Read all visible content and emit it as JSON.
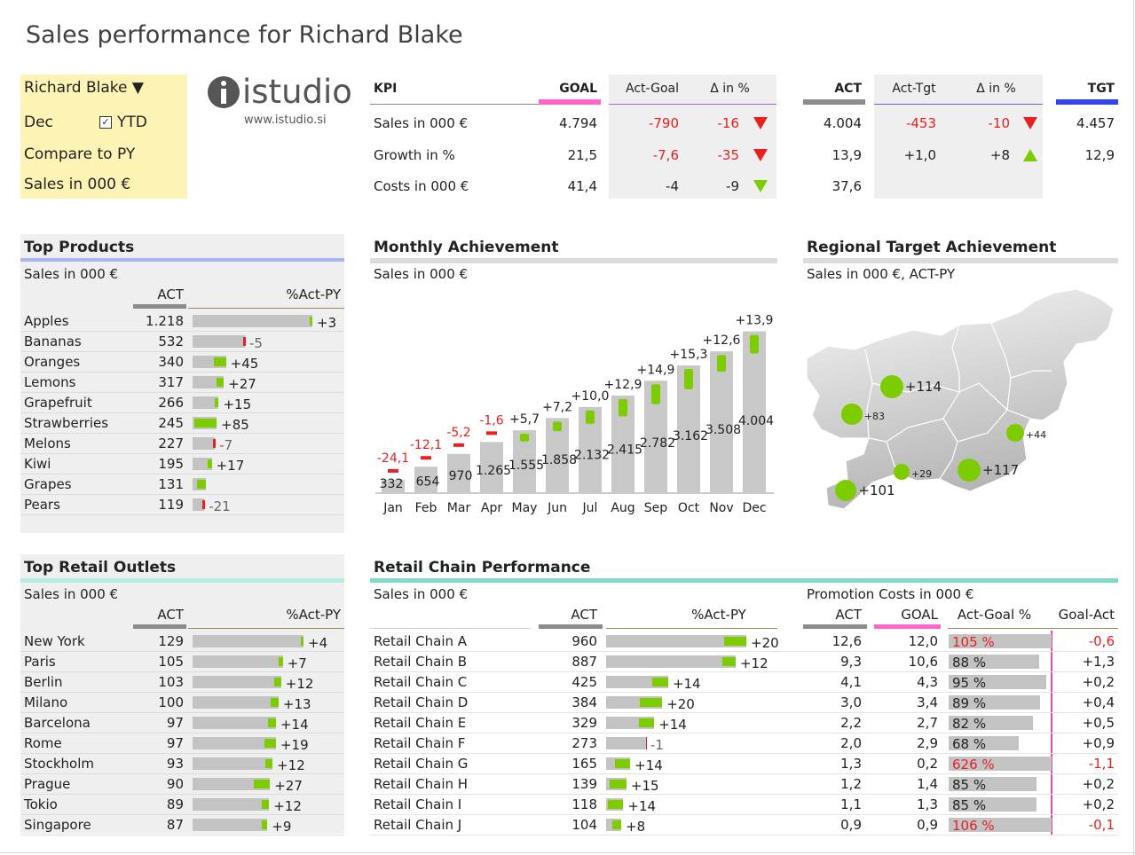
{
  "title": "Sales performance for Richard Blake",
  "selector": {
    "person": "Richard Blake",
    "person_caret": "▼",
    "period": "Dec",
    "ytd_label": "YTD",
    "ytd_checked": true,
    "compare": "Compare to PY",
    "measure": "Sales in 000 €"
  },
  "logo": {
    "name": "istudio",
    "url": "www.istudio.si"
  },
  "kpi": {
    "headers": {
      "kpi": "KPI",
      "goal": "GOAL",
      "act_goal": "Act-Goal",
      "delta1": "Δ in %",
      "act": "ACT",
      "act_tgt": "Act-Tgt",
      "delta2": "Δ in %",
      "tgt": "TGT"
    },
    "rows": [
      {
        "name": "Sales in 000 €",
        "goal": "4.794",
        "act_goal": "-790",
        "d1": "-16",
        "d1_dir": "down",
        "act": "4.004",
        "act_tgt": "-453",
        "d2": "-10",
        "d2_dir": "down",
        "tgt": "4.457"
      },
      {
        "name": "Growth in %",
        "goal": "21,5",
        "act_goal": "-7,6",
        "d1": "-35",
        "d1_dir": "down",
        "act": "13,9",
        "act_tgt": "+1,0",
        "d2": "+8",
        "d2_dir": "up",
        "tgt": "12,9"
      },
      {
        "name": "Costs in 000 €",
        "goal": "41,4",
        "act_goal": "-4",
        "d1": "-9",
        "d1_dir": "downgood",
        "act": "37,6",
        "act_tgt": "",
        "d2": "",
        "d2_dir": "",
        "tgt": ""
      }
    ]
  },
  "colors": {
    "goal": "#ff66cc",
    "act": "#8c8c8c",
    "tgt": "#3344ee",
    "pos": "#7ccc00",
    "neg": "#e82020",
    "bar": "#c3c3c3"
  },
  "top_products": {
    "title": "Top Products",
    "subtitle": "Sales in 000 €",
    "col_act": "ACT",
    "col_pct": "%Act-PY",
    "rows": [
      {
        "name": "Apples",
        "act": "1.218",
        "value": 1218,
        "pct": 3,
        "pct_label": "+3"
      },
      {
        "name": "Bananas",
        "act": "532",
        "value": 532,
        "pct": -5,
        "pct_label": "-5"
      },
      {
        "name": "Oranges",
        "act": "340",
        "value": 340,
        "pct": 45,
        "pct_label": "+45"
      },
      {
        "name": "Lemons",
        "act": "317",
        "value": 317,
        "pct": 27,
        "pct_label": "+27"
      },
      {
        "name": "Grapefruit",
        "act": "266",
        "value": 266,
        "pct": 15,
        "pct_label": "+15"
      },
      {
        "name": "Strawberries",
        "act": "245",
        "value": 245,
        "pct": 85,
        "pct_label": "+85"
      },
      {
        "name": "Melons",
        "act": "227",
        "value": 227,
        "pct": -7,
        "pct_label": "-7"
      },
      {
        "name": "Kiwi",
        "act": "195",
        "value": 195,
        "pct": 17,
        "pct_label": "+17"
      },
      {
        "name": "Grapes",
        "act": "131",
        "value": 131,
        "pct": 0,
        "pct_label": ""
      },
      {
        "name": "Pears",
        "act": "119",
        "value": 119,
        "pct": -21,
        "pct_label": "-21"
      }
    ]
  },
  "chart_data": {
    "type": "bar",
    "title": "Monthly Achievement",
    "subtitle": "Sales in 000 €",
    "categories": [
      "Jan",
      "Feb",
      "Mar",
      "Apr",
      "May",
      "Jun",
      "Jul",
      "Aug",
      "Sep",
      "Oct",
      "Nov",
      "Dec"
    ],
    "values": [
      332,
      654,
      970,
      1265,
      1555,
      1858,
      2132,
      2415,
      2782,
      3162,
      3508,
      4004
    ],
    "value_labels": [
      "332",
      "654",
      "970",
      "1.265",
      "1.555",
      "1.858",
      "2.132",
      "2.415",
      "2.782",
      "3.162",
      "3.508",
      "4.004"
    ],
    "growth": [
      -24.1,
      -12.1,
      -5.2,
      -1.6,
      5.7,
      7.2,
      10.0,
      12.9,
      14.9,
      15.3,
      12.6,
      13.9
    ],
    "growth_labels": [
      "-24,1",
      "-12,1",
      "-5,2",
      "-1,6",
      "+5,7",
      "+7,2",
      "+10,0",
      "+12,9",
      "+14,9",
      "+15,3",
      "+12,6",
      "+13,9"
    ],
    "ylim": [
      0,
      4500
    ]
  },
  "regional": {
    "title": "Regional Target Achievement",
    "subtitle": "Sales in 000 €, ACT-PY",
    "bubbles": [
      {
        "label": "+114",
        "value": 114
      },
      {
        "label": "+83",
        "value": 83
      },
      {
        "label": "+44",
        "value": 44
      },
      {
        "label": "+29",
        "value": 29
      },
      {
        "label": "+117",
        "value": 117
      },
      {
        "label": "+101",
        "value": 101
      }
    ]
  },
  "outlets": {
    "title": "Top Retail Outlets",
    "subtitle": "Sales in 000 €",
    "col_act": "ACT",
    "col_pct": "%Act-PY",
    "rows": [
      {
        "name": "New York",
        "act": "129",
        "value": 129,
        "pct": 4,
        "pct_label": "+4"
      },
      {
        "name": "Paris",
        "act": "105",
        "value": 105,
        "pct": 7,
        "pct_label": "+7"
      },
      {
        "name": "Berlin",
        "act": "103",
        "value": 103,
        "pct": 12,
        "pct_label": "+12"
      },
      {
        "name": "Milano",
        "act": "100",
        "value": 100,
        "pct": 13,
        "pct_label": "+13"
      },
      {
        "name": "Barcelona",
        "act": "97",
        "value": 97,
        "pct": 14,
        "pct_label": "+14"
      },
      {
        "name": "Rome",
        "act": "97",
        "value": 97,
        "pct": 19,
        "pct_label": "+19"
      },
      {
        "name": "Stockholm",
        "act": "93",
        "value": 93,
        "pct": 12,
        "pct_label": "+12"
      },
      {
        "name": "Prague",
        "act": "90",
        "value": 90,
        "pct": 27,
        "pct_label": "+27"
      },
      {
        "name": "Tokio",
        "act": "89",
        "value": 89,
        "pct": 12,
        "pct_label": "+12"
      },
      {
        "name": "Singapore",
        "act": "87",
        "value": 87,
        "pct": 9,
        "pct_label": "+9"
      }
    ]
  },
  "chains": {
    "title": "Retail Chain Performance",
    "subtitle": "Sales in 000 €",
    "col_act": "ACT",
    "col_pct": "%Act-PY",
    "promo_subtitle": "Promotion Costs in 000 €",
    "promo_cols": {
      "act": "ACT",
      "goal": "GOAL",
      "pct": "Act-Goal %",
      "diff": "Goal-Act"
    },
    "rows": [
      {
        "name": "Retail Chain A",
        "act": "960",
        "value": 960,
        "pct": 20,
        "pct_label": "+20",
        "p_act": "12,6",
        "p_goal": "12,0",
        "p_pct": 105,
        "p_pct_label": "105 %",
        "p_diff": "-0,6"
      },
      {
        "name": "Retail Chain B",
        "act": "887",
        "value": 887,
        "pct": 12,
        "pct_label": "+12",
        "p_act": "9,3",
        "p_goal": "10,6",
        "p_pct": 88,
        "p_pct_label": "88 %",
        "p_diff": "+1,3"
      },
      {
        "name": "Retail Chain C",
        "act": "425",
        "value": 425,
        "pct": 14,
        "pct_label": "+14",
        "p_act": "4,1",
        "p_goal": "4,3",
        "p_pct": 95,
        "p_pct_label": "95 %",
        "p_diff": "+0,2"
      },
      {
        "name": "Retail Chain D",
        "act": "384",
        "value": 384,
        "pct": 20,
        "pct_label": "+20",
        "p_act": "3,0",
        "p_goal": "3,4",
        "p_pct": 89,
        "p_pct_label": "89 %",
        "p_diff": "+0,4"
      },
      {
        "name": "Retail Chain E",
        "act": "329",
        "value": 329,
        "pct": 14,
        "pct_label": "+14",
        "p_act": "2,2",
        "p_goal": "2,7",
        "p_pct": 82,
        "p_pct_label": "82 %",
        "p_diff": "+0,5"
      },
      {
        "name": "Retail Chain F",
        "act": "273",
        "value": 273,
        "pct": -1,
        "pct_label": "-1",
        "p_act": "2,0",
        "p_goal": "2,9",
        "p_pct": 68,
        "p_pct_label": "68 %",
        "p_diff": "+0,9"
      },
      {
        "name": "Retail Chain G",
        "act": "165",
        "value": 165,
        "pct": 14,
        "pct_label": "+14",
        "p_act": "1,3",
        "p_goal": "0,2",
        "p_pct": 626,
        "p_pct_label": "626 %",
        "p_diff": "-1,1"
      },
      {
        "name": "Retail Chain H",
        "act": "139",
        "value": 139,
        "pct": 15,
        "pct_label": "+15",
        "p_act": "1,2",
        "p_goal": "1,4",
        "p_pct": 85,
        "p_pct_label": "85 %",
        "p_diff": "+0,2"
      },
      {
        "name": "Retail Chain I",
        "act": "118",
        "value": 118,
        "pct": 14,
        "pct_label": "+14",
        "p_act": "1,1",
        "p_goal": "1,3",
        "p_pct": 85,
        "p_pct_label": "85 %",
        "p_diff": "+0,2"
      },
      {
        "name": "Retail Chain J",
        "act": "104",
        "value": 104,
        "pct": 8,
        "pct_label": "+8",
        "p_act": "0,9",
        "p_goal": "0,9",
        "p_pct": 106,
        "p_pct_label": "106 %",
        "p_diff": "-0,1"
      }
    ]
  }
}
